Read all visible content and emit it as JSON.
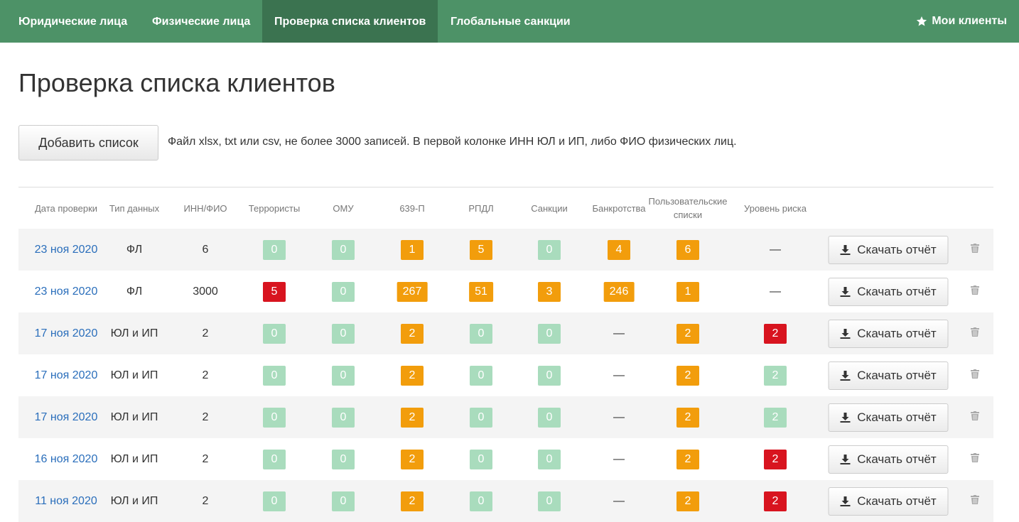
{
  "nav": {
    "items": [
      "Юридические лица",
      "Физические лица",
      "Проверка списка клиентов",
      "Глобальные санкции"
    ],
    "active": 2,
    "right": "Мои клиенты"
  },
  "header": {
    "title": "Проверка списка клиентов"
  },
  "upload": {
    "button": "Добавить список",
    "hint": "Файл xlsx, txt или csv, не более 3000 записей. В первой колонке ИНН ЮЛ и ИП, либо ФИО физических лиц."
  },
  "table": {
    "columns": [
      "Дата проверки",
      "Тип данных",
      "ИНН/ФИО",
      "Террористы",
      "ОМУ",
      "639-П",
      "РПДЛ",
      "Санкции",
      "Банкротства",
      "Пользовательские списки",
      "Уровень риска"
    ],
    "download_label": "Скачать отчёт",
    "rows": [
      {
        "date": "23 ноя 2020",
        "type": "ФЛ",
        "count": 6,
        "checks": [
          {
            "value": 0,
            "level": "ok"
          },
          {
            "value": 0,
            "level": "ok"
          },
          {
            "value": 1,
            "level": "warn"
          },
          {
            "value": 5,
            "level": "warn"
          },
          {
            "value": 0,
            "level": "ok"
          },
          {
            "value": 4,
            "level": "warn"
          },
          {
            "value": 6,
            "level": "warn"
          },
          "—"
        ]
      },
      {
        "date": "23 ноя 2020",
        "type": "ФЛ",
        "count": 3000,
        "checks": [
          {
            "value": 5,
            "level": "danger"
          },
          {
            "value": 0,
            "level": "ok"
          },
          {
            "value": 267,
            "level": "warn"
          },
          {
            "value": 51,
            "level": "warn"
          },
          {
            "value": 3,
            "level": "warn"
          },
          {
            "value": 246,
            "level": "warn"
          },
          {
            "value": 1,
            "level": "warn"
          },
          "—"
        ]
      },
      {
        "date": "17 ноя 2020",
        "type": "ЮЛ и ИП",
        "count": 2,
        "checks": [
          {
            "value": 0,
            "level": "ok"
          },
          {
            "value": 0,
            "level": "ok"
          },
          {
            "value": 2,
            "level": "warn"
          },
          {
            "value": 0,
            "level": "ok"
          },
          {
            "value": 0,
            "level": "ok"
          },
          "—",
          {
            "value": 2,
            "level": "warn"
          },
          {
            "value": 2,
            "level": "danger"
          }
        ]
      },
      {
        "date": "17 ноя 2020",
        "type": "ЮЛ и ИП",
        "count": 2,
        "checks": [
          {
            "value": 0,
            "level": "ok"
          },
          {
            "value": 0,
            "level": "ok"
          },
          {
            "value": 2,
            "level": "warn"
          },
          {
            "value": 0,
            "level": "ok"
          },
          {
            "value": 0,
            "level": "ok"
          },
          "—",
          {
            "value": 2,
            "level": "warn"
          },
          {
            "value": 2,
            "level": "ok"
          }
        ]
      },
      {
        "date": "17 ноя 2020",
        "type": "ЮЛ и ИП",
        "count": 2,
        "checks": [
          {
            "value": 0,
            "level": "ok"
          },
          {
            "value": 0,
            "level": "ok"
          },
          {
            "value": 2,
            "level": "warn"
          },
          {
            "value": 0,
            "level": "ok"
          },
          {
            "value": 0,
            "level": "ok"
          },
          "—",
          {
            "value": 2,
            "level": "warn"
          },
          {
            "value": 2,
            "level": "ok"
          }
        ]
      },
      {
        "date": "16 ноя 2020",
        "type": "ЮЛ и ИП",
        "count": 2,
        "checks": [
          {
            "value": 0,
            "level": "ok"
          },
          {
            "value": 0,
            "level": "ok"
          },
          {
            "value": 2,
            "level": "warn"
          },
          {
            "value": 0,
            "level": "ok"
          },
          {
            "value": 0,
            "level": "ok"
          },
          "—",
          {
            "value": 2,
            "level": "warn"
          },
          {
            "value": 2,
            "level": "danger"
          }
        ]
      },
      {
        "date": "11 ноя 2020",
        "type": "ЮЛ и ИП",
        "count": 2,
        "checks": [
          {
            "value": 0,
            "level": "ok"
          },
          {
            "value": 0,
            "level": "ok"
          },
          {
            "value": 2,
            "level": "warn"
          },
          {
            "value": 0,
            "level": "ok"
          },
          {
            "value": 0,
            "level": "ok"
          },
          "—",
          {
            "value": 2,
            "level": "warn"
          },
          {
            "value": 2,
            "level": "danger"
          }
        ]
      }
    ]
  }
}
